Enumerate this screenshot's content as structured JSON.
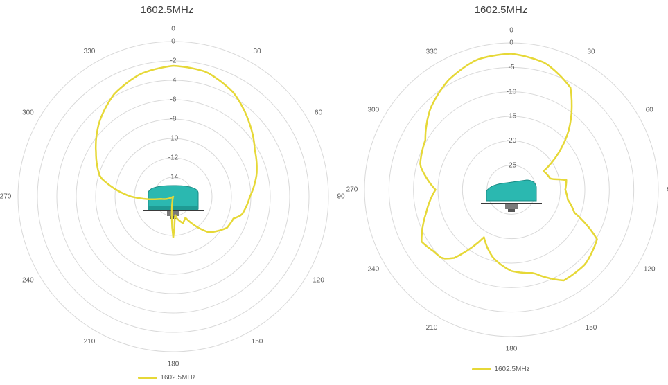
{
  "chart_data": [
    {
      "type": "polar-line",
      "title": "1602.5MHz",
      "angle_labels": [
        "0",
        "30",
        "60",
        "90",
        "120",
        "150",
        "180",
        "210",
        "240",
        "270",
        "300",
        "330"
      ],
      "radial_labels": [
        "0",
        "-2",
        "-4",
        "-6",
        "-8",
        "-10",
        "-12",
        "-14"
      ],
      "rlim": [
        -16,
        0
      ],
      "grid": true,
      "series": [
        {
          "name": "1602.5MHz",
          "color": "#e6d837",
          "angles": [
            0,
            15,
            30,
            45,
            60,
            75,
            90,
            105,
            110,
            120,
            135,
            150,
            160,
            170,
            175,
            180,
            185,
            190,
            195,
            210,
            240,
            260,
            270,
            285,
            300,
            315,
            330,
            345,
            360
          ],
          "values": [
            -2.5,
            -2.7,
            -3.6,
            -5.0,
            -6.3,
            -7.1,
            -8.1,
            -8.7,
            -9.4,
            -9.6,
            -10.8,
            -13.5,
            -13.1,
            -13.7,
            -14.2,
            -11.8,
            -14.4,
            -15.5,
            -15.8,
            -16.0,
            -16.0,
            -14.7,
            -11.7,
            -8.2,
            -6.8,
            -5.2,
            -3.8,
            -2.9,
            -2.5
          ]
        }
      ],
      "legend_position": "bottom"
    },
    {
      "type": "polar-line",
      "title": "1602.5MHz",
      "angle_labels": [
        "0",
        "30",
        "60",
        "90",
        "120",
        "150",
        "180",
        "210",
        "240",
        "270",
        "300",
        "330"
      ],
      "radial_labels": [
        "0",
        "-5",
        "-10",
        "-15",
        "-20",
        "-25"
      ],
      "rlim": [
        -30,
        0
      ],
      "grid": true,
      "series": [
        {
          "name": "1602.5MHz",
          "color": "#e6d837",
          "angles": [
            0,
            15,
            30,
            45,
            60,
            75,
            80,
            90,
            100,
            110,
            120,
            135,
            150,
            165,
            180,
            195,
            210,
            220,
            225,
            232,
            240,
            255,
            270,
            285,
            300,
            315,
            330,
            345,
            360
          ],
          "values": [
            -2.2,
            -3.2,
            -5.9,
            -13.7,
            -22.4,
            -21.7,
            -18.6,
            -19.0,
            -18.3,
            -16.3,
            -9.8,
            -8.6,
            -8.6,
            -12.4,
            -13.4,
            -15.6,
            -18.8,
            -11.8,
            -10.1,
            -9.7,
            -8.8,
            -12.0,
            -14.5,
            -10.7,
            -9.7,
            -6.6,
            -4.2,
            -2.5,
            -2.2
          ]
        }
      ],
      "legend_position": "bottom"
    }
  ]
}
